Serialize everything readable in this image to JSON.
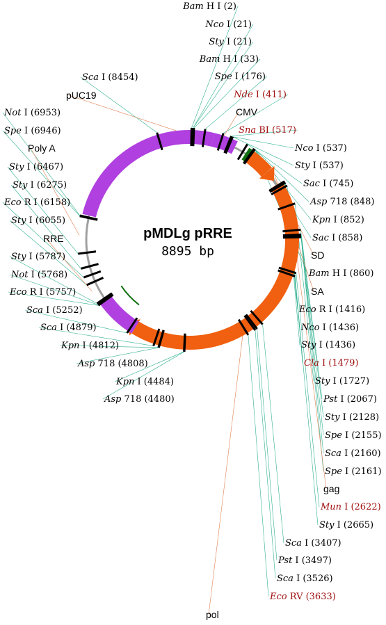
{
  "plasmid": {
    "name": "pMDLg pRRE",
    "size_label": "8895 bp",
    "length": 8895
  },
  "colors": {
    "purple": "#b040e0",
    "orange": "#f06010",
    "green": "#107010",
    "gray": "#a0a0a0",
    "tick": "#000000",
    "link": "#30b090",
    "orange_link": "#e08050",
    "enzyme_red": "#a01010"
  },
  "features": [
    {
      "label": "pUC19",
      "start": 6980,
      "end": 8895,
      "color": "purple"
    },
    {
      "label": "pUC19",
      "start": 0,
      "end": 300,
      "color": "purple"
    },
    {
      "label": "CMV",
      "start": 300,
      "end": 620,
      "color": "purple"
    },
    {
      "label": "gag",
      "start": 820,
      "end": 1180,
      "color": "orange",
      "arrow": true
    },
    {
      "label": "gag",
      "start": 1400,
      "end": 2620,
      "color": "orange"
    },
    {
      "label": "pol",
      "start": 2620,
      "end": 5200,
      "color": "orange",
      "arrow": true
    },
    {
      "label": "RRE",
      "start": 5200,
      "end": 5780,
      "color": "purple"
    }
  ],
  "feature_labels": [
    {
      "text": "pUC19",
      "pos": 8700
    },
    {
      "text": "CMV",
      "pos": 430
    },
    {
      "text": "SD",
      "pos": 1050
    },
    {
      "text": "SA",
      "pos": 1190
    },
    {
      "text": "gag",
      "pos": 2450
    },
    {
      "text": "pol",
      "pos": 3700
    },
    {
      "text": "RRE",
      "pos": 5950
    },
    {
      "text": "Poly A",
      "pos": 6700
    }
  ],
  "sites": [
    {
      "name": "Bam",
      "suffix": "H I (2)",
      "pos": 2
    },
    {
      "name": "Nco",
      "suffix": "I (21)",
      "pos": 21
    },
    {
      "name": "Sty",
      "suffix": "I (21)",
      "pos": 21
    },
    {
      "name": "Bam",
      "suffix": "H I (33)",
      "pos": 33
    },
    {
      "name": "Spe",
      "suffix": "I (176)",
      "pos": 176
    },
    {
      "name": "Nde",
      "suffix": "I (411)",
      "pos": 411,
      "red": true
    },
    {
      "name": "Sna",
      "suffix": "BI (517)",
      "pos": 517,
      "red": true
    },
    {
      "name": "Nco",
      "suffix": "I (537)",
      "pos": 537
    },
    {
      "name": "Sty",
      "suffix": "I (537)",
      "pos": 537
    },
    {
      "name": "Sac",
      "suffix": "I (745)",
      "pos": 745
    },
    {
      "name": "Asp",
      "suffix": "718 (848)",
      "pos": 848
    },
    {
      "name": "Kpn",
      "suffix": "I (852)",
      "pos": 852
    },
    {
      "name": "Sac",
      "suffix": "I (858)",
      "pos": 858
    },
    {
      "name": "Bam",
      "suffix": "H I (860)",
      "pos": 860
    },
    {
      "name": "Eco",
      "suffix": "R I (1416)",
      "pos": 1416
    },
    {
      "name": "Nco",
      "suffix": "I (1436)",
      "pos": 1436
    },
    {
      "name": "Sty",
      "suffix": "I (1436)",
      "pos": 1436
    },
    {
      "name": "Cla",
      "suffix": "I (1479)",
      "pos": 1479,
      "red": true
    },
    {
      "name": "Sty",
      "suffix": "I (1727)",
      "pos": 1727
    },
    {
      "name": "Pst",
      "suffix": "I (2067)",
      "pos": 2067
    },
    {
      "name": "Sty",
      "suffix": "I (2128)",
      "pos": 2128
    },
    {
      "name": "Spe",
      "suffix": "I (2155)",
      "pos": 2155
    },
    {
      "name": "Sca",
      "suffix": "I (2160)",
      "pos": 2160
    },
    {
      "name": "Spe",
      "suffix": "I (2161)",
      "pos": 2161
    },
    {
      "name": "Mun",
      "suffix": "I (2622)",
      "pos": 2622,
      "red": true
    },
    {
      "name": "Sty",
      "suffix": "I (2665)",
      "pos": 2665
    },
    {
      "name": "Sca",
      "suffix": "I (3407)",
      "pos": 3407
    },
    {
      "name": "Pst",
      "suffix": "I (3497)",
      "pos": 3497
    },
    {
      "name": "Sca",
      "suffix": "I (3526)",
      "pos": 3526
    },
    {
      "name": "Eco",
      "suffix": "RV (3633)",
      "pos": 3633,
      "red": true
    },
    {
      "name": "Asp",
      "suffix": "718 (4480)",
      "pos": 4480
    },
    {
      "name": "Kpn",
      "suffix": "I (4484)",
      "pos": 4484
    },
    {
      "name": "Asp",
      "suffix": "718 (4808)",
      "pos": 4808
    },
    {
      "name": "Kpn",
      "suffix": "I (4812)",
      "pos": 4812
    },
    {
      "name": "Sca",
      "suffix": "I (4879)",
      "pos": 4879
    },
    {
      "name": "Sca",
      "suffix": "I (5252)",
      "pos": 5252
    },
    {
      "name": "Eco",
      "suffix": "R I (5757)",
      "pos": 5757
    },
    {
      "name": "Not",
      "suffix": "I (5768)",
      "pos": 5768
    },
    {
      "name": "Sty",
      "suffix": "I (5787)",
      "pos": 5787
    },
    {
      "name": "Sty",
      "suffix": "I (6055)",
      "pos": 6055
    },
    {
      "name": "Eco",
      "suffix": "R I (6158)",
      "pos": 6158
    },
    {
      "name": "Sty",
      "suffix": "I (6275)",
      "pos": 6275
    },
    {
      "name": "Sty",
      "suffix": "I (6467)",
      "pos": 6467
    },
    {
      "name": "Spe",
      "suffix": "I (6946)",
      "pos": 6946
    },
    {
      "name": "Not",
      "suffix": "I (6953)",
      "pos": 6953
    },
    {
      "name": "Sca",
      "suffix": "I (8454)",
      "pos": 8454
    }
  ]
}
